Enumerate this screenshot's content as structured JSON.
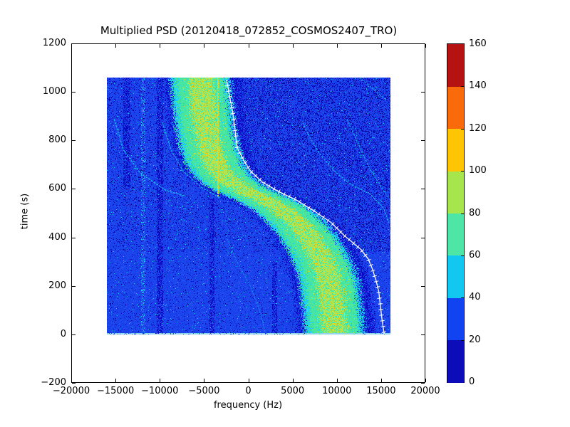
{
  "title": "Multiplied PSD (20120418_072852_COSMOS2407_TRO)",
  "axes": {
    "xlabel": "frequency (Hz)",
    "ylabel": "time (s)",
    "xlim": [
      -20000,
      20000
    ],
    "ylim": [
      -200,
      1200
    ],
    "xticks": {
      "values": [
        -20000,
        -15000,
        -10000,
        -5000,
        0,
        5000,
        10000,
        15000,
        20000
      ],
      "labels": [
        "−20000",
        "−15000",
        "−10000",
        "−5000",
        "0",
        "5000",
        "10000",
        "15000",
        "20000"
      ]
    },
    "yticks": {
      "values": [
        -200,
        0,
        200,
        400,
        600,
        800,
        1000,
        1200
      ],
      "labels": [
        "−200",
        "0",
        "200",
        "400",
        "600",
        "800",
        "1000",
        "1200"
      ]
    }
  },
  "colorbar": {
    "tick_values": [
      0,
      20,
      40,
      60,
      80,
      100,
      120,
      140,
      160
    ],
    "tick_labels": [
      "0",
      "20",
      "40",
      "60",
      "80",
      "100",
      "120",
      "140",
      "160"
    ],
    "segment_colors": [
      "#0c0cb8",
      "#1243f0",
      "#12c8f0",
      "#4de6a6",
      "#a6e64c",
      "#fdc503",
      "#f96b0a",
      "#b51212"
    ]
  },
  "chart_data": {
    "type": "heatmap",
    "title": "Multiplied PSD (20120418_072852_COSMOS2407_TRO)",
    "xlabel": "frequency (Hz)",
    "ylabel": "time (s)",
    "xlim": [
      -20000,
      20000
    ],
    "ylim": [
      -200,
      1200
    ],
    "value_range": [
      0,
      160
    ],
    "extent": {
      "freq": [
        -16000,
        16000
      ],
      "time": [
        0,
        1060
      ]
    },
    "legend_position": "right-colorbar",
    "grid": false,
    "palette": {
      "bg": "#1a43ee",
      "bg2": "#1540e6",
      "bg3": "#2450f2",
      "bgl": "#2a63f8",
      "navy": "#0a0ac2",
      "deep": "#000088",
      "cyan": "#18c8f0",
      "green": "#46e6a2",
      "ygreen": "#b4e44e",
      "gold": "#fdc503",
      "olive": "#d8d830",
      "light": "#8fd4ea",
      "white": "#ffffff"
    },
    "doppler_band": {
      "center_tf": [
        [
          0,
          9780
        ],
        [
          112,
          9530
        ],
        [
          216,
          9130
        ],
        [
          289,
          8570
        ],
        [
          348,
          7760
        ],
        [
          407,
          6720
        ],
        [
          466,
          5350
        ],
        [
          516,
          3740
        ],
        [
          555,
          1890
        ],
        [
          584,
          120
        ],
        [
          613,
          -1490
        ],
        [
          649,
          -2700
        ],
        [
          696,
          -3660
        ],
        [
          761,
          -4310
        ],
        [
          849,
          -4870
        ],
        [
          952,
          -5190
        ],
        [
          1055,
          -5430
        ]
      ],
      "core_halfwidth_hz": 1350,
      "green_halfwidth_hz": 2750,
      "cyan_halfwidth_hz": 3400,
      "fringe_halfwidth_hz": 4400
    },
    "fitted_curve_tf": [
      [
        0,
        15410
      ],
      [
        9,
        15330
      ],
      [
        68,
        15090
      ],
      [
        121,
        14930
      ],
      [
        171,
        14770
      ],
      [
        221,
        14450
      ],
      [
        268,
        14040
      ],
      [
        310,
        13560
      ],
      [
        348,
        12760
      ],
      [
        407,
        10830
      ],
      [
        460,
        9380
      ],
      [
        510,
        7360
      ],
      [
        555,
        5350
      ],
      [
        590,
        3340
      ],
      [
        628,
        1570
      ],
      [
        672,
        280
      ],
      [
        717,
        -520
      ],
      [
        770,
        -1250
      ],
      [
        908,
        -1730
      ],
      [
        1050,
        -2460
      ]
    ],
    "arcs": [
      {
        "pts": [
          [
            888,
            -15170
          ],
          [
            761,
            -14130
          ],
          [
            664,
            -12190
          ],
          [
            593,
            -9300
          ],
          [
            569,
            -7120
          ]
        ],
        "alpha": 0.85,
        "width": 1.4,
        "color": "#18c8f0"
      },
      {
        "pts": [
          [
            873,
            -9700
          ],
          [
            761,
            -8730
          ],
          [
            672,
            -7360
          ],
          [
            605,
            -5270
          ],
          [
            562,
            -3200
          ]
        ],
        "alpha": 0.8,
        "width": 1.3,
        "color": "#18c8f0"
      },
      {
        "pts": [
          [
            407,
            -2540
          ],
          [
            300,
            -1300
          ],
          [
            200,
            200
          ],
          [
            100,
            1250
          ],
          [
            9,
            1890
          ]
        ],
        "alpha": 0.5,
        "width": 1.1,
        "color": "#18c8f0"
      },
      {
        "pts": [
          [
            873,
            6160
          ],
          [
            811,
            6960
          ],
          [
            740,
            8170
          ],
          [
            672,
            9780
          ],
          [
            623,
            11390
          ],
          [
            578,
            13800
          ],
          [
            520,
            15300
          ],
          [
            460,
            15900
          ]
        ],
        "alpha": 0.8,
        "width": 1.3,
        "color": "#18c8f0"
      },
      {
        "pts": [
          [
            888,
            11150
          ],
          [
            790,
            12400
          ],
          [
            700,
            13500
          ],
          [
            620,
            14800
          ],
          [
            560,
            15900
          ]
        ],
        "alpha": 0.75,
        "width": 1.2,
        "color": "#18c8f0"
      },
      {
        "pts": [
          [
            1060,
            12600
          ],
          [
            1010,
            14200
          ],
          [
            965,
            15650
          ]
        ],
        "alpha": 0.7,
        "width": 1.2,
        "color": "#18c8f0"
      },
      {
        "pts": [
          [
            520,
            -9800
          ],
          [
            300,
            -9400
          ],
          [
            91,
            -9000
          ]
        ],
        "alpha": 0.45,
        "width": 1.0,
        "color": "#0d2bd6"
      }
    ],
    "columns": [
      {
        "f": -11950,
        "halfwidth": 260,
        "type": "light",
        "t_range": [
          0,
          1060
        ]
      },
      {
        "f": -13800,
        "halfwidth": 420,
        "type": "dark",
        "t_range": [
          600,
          1060
        ]
      },
      {
        "f": -10050,
        "halfwidth": 380,
        "type": "dark",
        "t_range": [
          0,
          1060
        ]
      },
      {
        "f": -4150,
        "halfwidth": 260,
        "type": "dark",
        "t_range": [
          0,
          560
        ]
      },
      {
        "f": 2940,
        "halfwidth": 300,
        "type": "dark",
        "t_range": [
          0,
          300
        ]
      }
    ],
    "artifact_line": {
      "f": -3480,
      "t_range": [
        570,
        1060
      ]
    },
    "noise": {
      "speckle_dark_upper_right": 0.3,
      "speckle_dark_upper_left": 0.13,
      "speckle_dark_lower": 0.06,
      "speckle_cyan": 0.013,
      "upper_region_t_min": 340
    }
  }
}
